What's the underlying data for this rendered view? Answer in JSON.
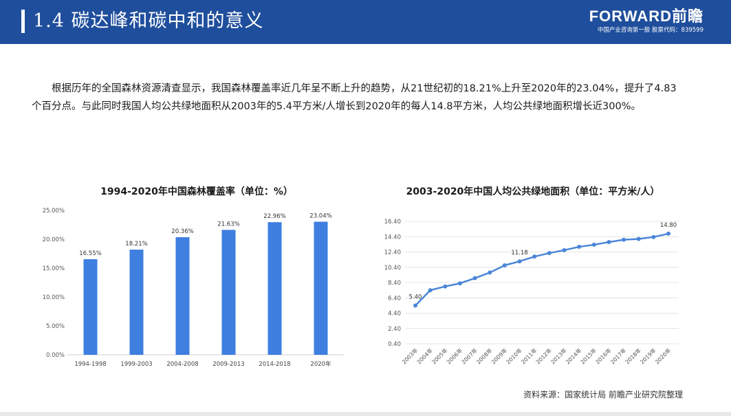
{
  "header": {
    "title": "1.4  碳达峰和碳中和的意义",
    "logo_main": "FORWARD前瞻",
    "logo_sub": "中国产业咨询第一股  股票代码：839599"
  },
  "intro": "根据历年的全国森林资源清查显示，我国森林覆盖率近几年呈不断上升的趋势，从21世纪初的18.21%上升至2020年的23.04%，提升了4.83个百分点。与此同时我国人均公共绿地面积从2003年的5.4平方米/人增长到2020年的每人14.8平方米，人均公共绿地面积增长近300%。",
  "source": "资料来源：国家统计局 前瞻产业研究院整理",
  "colors": {
    "header": "#1f4e9c",
    "bar": "#3e7fe0",
    "line": "#4a86d8",
    "grid": "#e4e4e4"
  },
  "chart_data": [
    {
      "type": "bar",
      "title": "1994-2020年中国森林覆盖率（单位：%）",
      "categories": [
        "1994-1998",
        "1999-2003",
        "2004-2008",
        "2009-2013",
        "2014-2018",
        "2020年"
      ],
      "values": [
        16.55,
        18.21,
        20.36,
        21.63,
        22.96,
        23.04
      ],
      "value_labels": [
        "16.55%",
        "18.21%",
        "20.36%",
        "21.63%",
        "22.96%",
        "23.04%"
      ],
      "y_ticks": [
        "0.00%",
        "5.00%",
        "10.00%",
        "15.00%",
        "20.00%",
        "25.00%"
      ],
      "ylim": [
        0,
        25
      ],
      "grid": false,
      "legend": "none"
    },
    {
      "type": "line",
      "title": "2003-2020年中国人均公共绿地面积（单位：平方米/人）",
      "categories": [
        "2003年",
        "2004年",
        "2005年",
        "2006年",
        "2007年",
        "2008年",
        "2009年",
        "2010年",
        "2011年",
        "2012年",
        "2013年",
        "2014年",
        "2015年",
        "2016年",
        "2017年",
        "2018年",
        "2019年",
        "2020年"
      ],
      "values": [
        5.4,
        7.4,
        7.9,
        8.3,
        8.98,
        9.71,
        10.66,
        11.18,
        11.8,
        12.26,
        12.64,
        13.08,
        13.35,
        13.7,
        14.01,
        14.11,
        14.36,
        14.8
      ],
      "labels": [
        {
          "index": 0,
          "text": "5.40"
        },
        {
          "index": 7,
          "text": "11.18"
        },
        {
          "index": 17,
          "text": "14.80"
        }
      ],
      "y_ticks": [
        "0.40",
        "2.40",
        "4.40",
        "6.40",
        "8.40",
        "10.40",
        "12.40",
        "14.40",
        "16.40"
      ],
      "ylim": [
        0.4,
        16.4
      ],
      "grid": true,
      "legend": "none"
    }
  ]
}
